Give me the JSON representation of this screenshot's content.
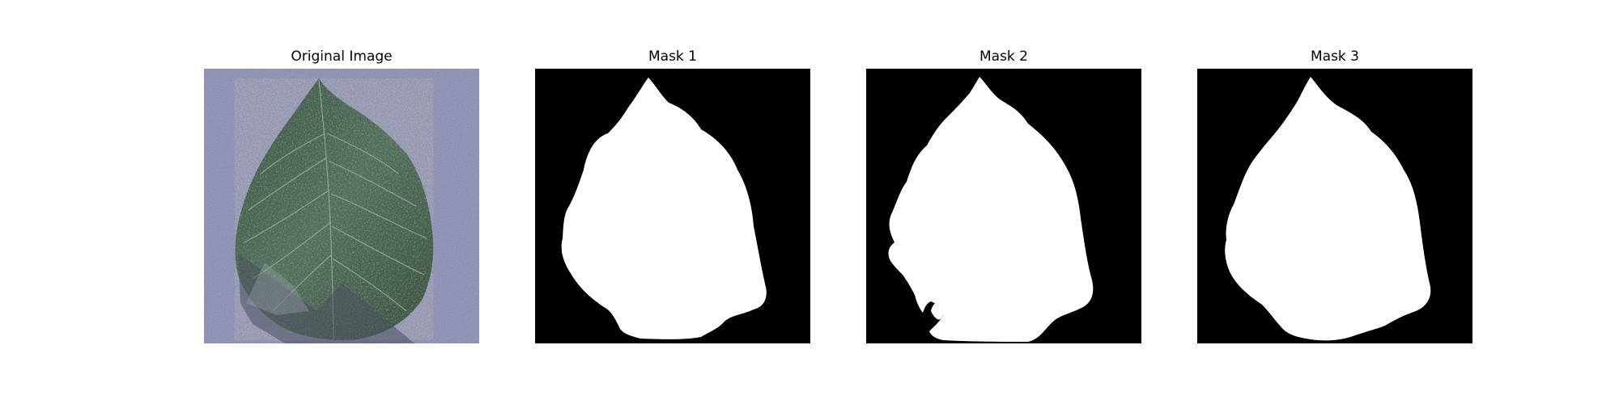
{
  "figure": {
    "background": "#ffffff",
    "panels": [
      {
        "id": "original",
        "title": "Original Image",
        "kind": "photo"
      },
      {
        "id": "mask1",
        "title": "Mask 1",
        "kind": "mask"
      },
      {
        "id": "mask2",
        "title": "Mask 2",
        "kind": "mask"
      },
      {
        "id": "mask3",
        "title": "Mask 3",
        "kind": "mask"
      }
    ]
  },
  "colors": {
    "mask_background": "#000000",
    "mask_foreground": "#ffffff",
    "paper_background": "#8f92b3",
    "leaf_green": "#47624f",
    "shadow_gray": "#5f6270"
  }
}
